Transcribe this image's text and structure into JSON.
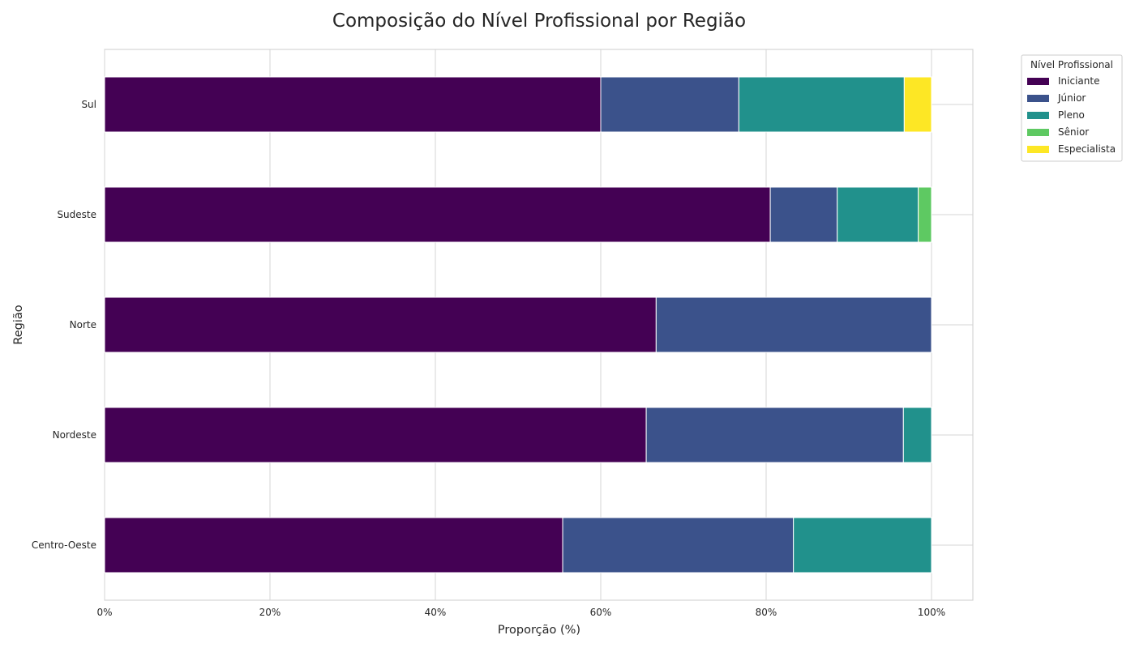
{
  "chart_data": {
    "type": "bar",
    "orientation": "horizontal",
    "stacked": true,
    "title": "Composição do Nível Profissional por Região",
    "xlabel": "Proporção (%)",
    "ylabel": "Região",
    "xlim": [
      0,
      105
    ],
    "xticks": [
      "0%",
      "20%",
      "40%",
      "60%",
      "80%",
      "100%"
    ],
    "grid": true,
    "legend_position": "outside-top-right",
    "legend_title": "Nível Profissional",
    "categories": [
      "Sul",
      "Sudeste",
      "Norte",
      "Nordeste",
      "Centro-Oeste"
    ],
    "series": [
      {
        "name": "Iniciante",
        "color": "#440154",
        "values": [
          60.0,
          80.5,
          66.7,
          65.5,
          55.4
        ]
      },
      {
        "name": "Júnior",
        "color": "#3b528b",
        "values": [
          16.7,
          8.1,
          33.3,
          31.1,
          27.9
        ]
      },
      {
        "name": "Pleno",
        "color": "#21918c",
        "values": [
          20.0,
          9.8,
          0,
          3.4,
          16.7
        ]
      },
      {
        "name": "Sênior",
        "color": "#5ec962",
        "values": [
          0,
          1.6,
          0,
          0,
          0
        ]
      },
      {
        "name": "Especialista",
        "color": "#fde725",
        "values": [
          3.3,
          0,
          0,
          0,
          0
        ]
      }
    ]
  }
}
